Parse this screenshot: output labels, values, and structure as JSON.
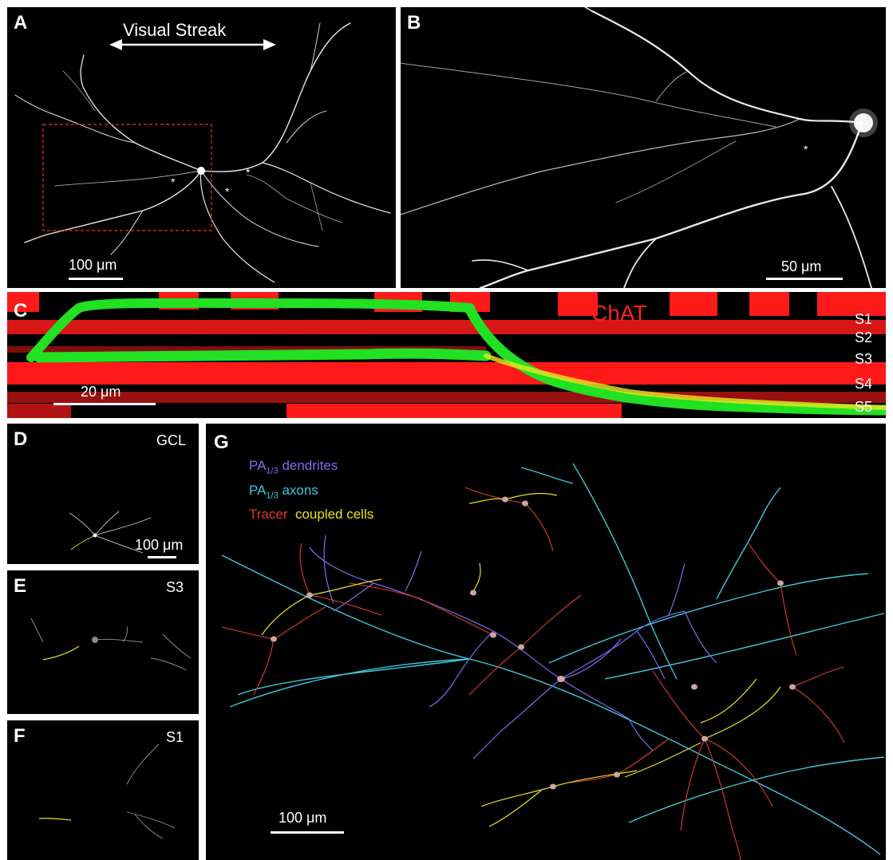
{
  "panels": {
    "A": {
      "label": "A",
      "title": "Visual Streak",
      "scale": "100 μm",
      "asterisk": "*"
    },
    "B": {
      "label": "B",
      "scale": "50 μm",
      "asterisk": "*"
    },
    "C": {
      "label": "C",
      "stain": "ChAT",
      "scale": "20 μm",
      "layers": [
        "S1",
        "S2",
        "S3",
        "S4",
        "S5"
      ]
    },
    "D": {
      "label": "D",
      "layer": "GCL",
      "scale": "100 μm"
    },
    "E": {
      "label": "E",
      "layer": "S3"
    },
    "F": {
      "label": "F",
      "layer": "S1"
    },
    "G": {
      "label": "G",
      "scale": "100 μm",
      "legend": {
        "dendrites_prefix": "PA",
        "dendrites_sub": "1/3",
        "dendrites_suffix": " dendrites",
        "axons_prefix": "PA",
        "axons_sub": "1/3",
        "axons_suffix": " axons",
        "tracer": "Tracer",
        "coupled": "coupled cells"
      }
    }
  },
  "colors": {
    "background": "#000000",
    "neuron": "#e8e8e8",
    "roi_box": "#e02020",
    "chat": "#ff1a1a",
    "labeled_cell": "#22e022",
    "dendrites": "#7a6ef0",
    "axons": "#3ec8d8",
    "tracer": "#e03a32",
    "coupled": "#e8e020",
    "soma": "#c8a8a0"
  }
}
